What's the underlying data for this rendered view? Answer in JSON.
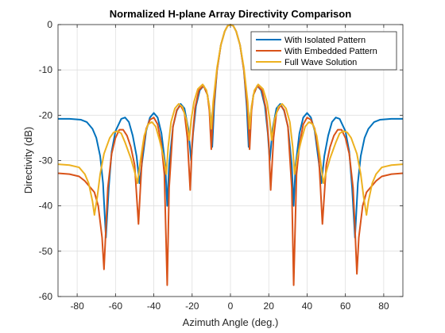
{
  "chart_data": {
    "type": "line",
    "title": "Normalized H-plane Array Directivity Comparison",
    "xlabel": "Azimuth Angle (deg.)",
    "ylabel": "Directivity (dB)",
    "xlim": [
      -90,
      90
    ],
    "ylim": [
      -60,
      0
    ],
    "xticks": [
      -80,
      -60,
      -40,
      -20,
      0,
      20,
      40,
      60,
      80
    ],
    "yticks": [
      0,
      -10,
      -20,
      -30,
      -40,
      -50,
      -60
    ],
    "grid": true,
    "legend_position": "top-right",
    "series": [
      {
        "name": "With Isolated Pattern",
        "color": "#0072BD",
        "points": [
          [
            -90,
            -20.8
          ],
          [
            -84,
            -20.8
          ],
          [
            -78,
            -21.0
          ],
          [
            -75,
            -21.5
          ],
          [
            -72,
            -23.0
          ],
          [
            -70,
            -25.0
          ],
          [
            -68,
            -29.0
          ],
          [
            -66.5,
            -35.0
          ],
          [
            -65,
            -47.0
          ],
          [
            -63.5,
            -36.0
          ],
          [
            -62,
            -28.0
          ],
          [
            -60,
            -23.5
          ],
          [
            -57,
            -20.8
          ],
          [
            -55,
            -20.5
          ],
          [
            -53,
            -21.5
          ],
          [
            -51,
            -24.5
          ],
          [
            -49,
            -29.0
          ],
          [
            -47.5,
            -35.0
          ],
          [
            -46,
            -30.0
          ],
          [
            -44,
            -23.5
          ],
          [
            -42,
            -20.5
          ],
          [
            -40,
            -19.5
          ],
          [
            -38,
            -20.5
          ],
          [
            -36,
            -24.0
          ],
          [
            -34,
            -31.0
          ],
          [
            -33,
            -40.0
          ],
          [
            -32,
            -31.0
          ],
          [
            -30,
            -22.5
          ],
          [
            -28,
            -19.0
          ],
          [
            -26,
            -17.5
          ],
          [
            -24,
            -18.5
          ],
          [
            -22,
            -23.0
          ],
          [
            -20.5,
            -30.0
          ],
          [
            -19.5,
            -24.0
          ],
          [
            -18,
            -18.0
          ],
          [
            -16,
            -14.5
          ],
          [
            -14,
            -13.5
          ],
          [
            -12,
            -15.5
          ],
          [
            -10.5,
            -20.0
          ],
          [
            -9.5,
            -27.0
          ],
          [
            -8.5,
            -18.0
          ],
          [
            -7,
            -10.0
          ],
          [
            -5,
            -4.5
          ],
          [
            -3,
            -1.5
          ],
          [
            -1.5,
            -0.3
          ],
          [
            0,
            0
          ],
          [
            1.5,
            -0.3
          ],
          [
            3,
            -1.5
          ],
          [
            5,
            -4.5
          ],
          [
            7,
            -10.0
          ],
          [
            8.5,
            -18.0
          ],
          [
            9.5,
            -27.0
          ],
          [
            10.5,
            -20.0
          ],
          [
            12,
            -15.5
          ],
          [
            14,
            -13.5
          ],
          [
            16,
            -14.5
          ],
          [
            18,
            -18.0
          ],
          [
            19.5,
            -24.0
          ],
          [
            20.5,
            -30.0
          ],
          [
            22,
            -23.0
          ],
          [
            24,
            -18.5
          ],
          [
            26,
            -17.5
          ],
          [
            28,
            -19.0
          ],
          [
            30,
            -22.5
          ],
          [
            32,
            -31.0
          ],
          [
            33,
            -40.0
          ],
          [
            34,
            -31.0
          ],
          [
            36,
            -24.0
          ],
          [
            38,
            -20.5
          ],
          [
            40,
            -19.5
          ],
          [
            42,
            -20.5
          ],
          [
            44,
            -23.5
          ],
          [
            46,
            -30.0
          ],
          [
            47.5,
            -35.0
          ],
          [
            49,
            -29.0
          ],
          [
            51,
            -24.5
          ],
          [
            53,
            -21.5
          ],
          [
            55,
            -20.5
          ],
          [
            57,
            -20.8
          ],
          [
            60,
            -23.5
          ],
          [
            62,
            -28.0
          ],
          [
            63.5,
            -36.0
          ],
          [
            65,
            -47.0
          ],
          [
            66.5,
            -35.0
          ],
          [
            68,
            -29.0
          ],
          [
            70,
            -25.0
          ],
          [
            72,
            -23.0
          ],
          [
            75,
            -21.5
          ],
          [
            78,
            -21.0
          ],
          [
            84,
            -20.8
          ],
          [
            90,
            -20.8
          ]
        ]
      },
      {
        "name": "With Embedded Pattern",
        "color": "#D95319",
        "points": [
          [
            -90,
            -32.8
          ],
          [
            -84,
            -33.0
          ],
          [
            -79,
            -33.5
          ],
          [
            -76,
            -34.5
          ],
          [
            -73,
            -36.0
          ],
          [
            -71,
            -37.0
          ],
          [
            -69,
            -40.0
          ],
          [
            -67,
            -47.0
          ],
          [
            -66,
            -54.0
          ],
          [
            -65,
            -45.0
          ],
          [
            -64,
            -36.0
          ],
          [
            -62,
            -28.5
          ],
          [
            -60,
            -25.0
          ],
          [
            -58,
            -23.2
          ],
          [
            -56,
            -23.2
          ],
          [
            -54,
            -24.5
          ],
          [
            -52,
            -27.0
          ],
          [
            -50,
            -31.0
          ],
          [
            -48,
            -44.0
          ],
          [
            -47,
            -36.0
          ],
          [
            -46,
            -28.5
          ],
          [
            -44,
            -23.0
          ],
          [
            -42,
            -21.0
          ],
          [
            -40,
            -20.5
          ],
          [
            -38,
            -22.0
          ],
          [
            -36,
            -26.5
          ],
          [
            -34.5,
            -33.0
          ],
          [
            -33,
            -57.5
          ],
          [
            -32,
            -36.0
          ],
          [
            -30,
            -22.5
          ],
          [
            -28,
            -18.8
          ],
          [
            -26,
            -17.8
          ],
          [
            -24,
            -19.5
          ],
          [
            -22.5,
            -25.0
          ],
          [
            -21,
            -36.5
          ],
          [
            -20,
            -26.0
          ],
          [
            -18.5,
            -18.5
          ],
          [
            -16.5,
            -14.5
          ],
          [
            -14,
            -13.5
          ],
          [
            -12,
            -15.5
          ],
          [
            -11,
            -19.0
          ],
          [
            -10,
            -27.5
          ],
          [
            -9,
            -19.0
          ],
          [
            -7,
            -10.0
          ],
          [
            -5,
            -4.5
          ],
          [
            -3,
            -1.5
          ],
          [
            -1.5,
            -0.3
          ],
          [
            0,
            0
          ],
          [
            1.5,
            -0.3
          ],
          [
            3,
            -1.5
          ],
          [
            5,
            -4.5
          ],
          [
            7,
            -10.0
          ],
          [
            9,
            -19.0
          ],
          [
            10,
            -27.5
          ],
          [
            11,
            -19.0
          ],
          [
            12,
            -15.5
          ],
          [
            14,
            -13.5
          ],
          [
            16.5,
            -14.5
          ],
          [
            18.5,
            -18.5
          ],
          [
            20,
            -26.0
          ],
          [
            21,
            -36.5
          ],
          [
            22.5,
            -25.0
          ],
          [
            24,
            -19.5
          ],
          [
            26,
            -17.8
          ],
          [
            28,
            -18.8
          ],
          [
            30,
            -22.5
          ],
          [
            32,
            -36.0
          ],
          [
            33,
            -57.5
          ],
          [
            34.5,
            -33.0
          ],
          [
            36,
            -26.5
          ],
          [
            38,
            -22.0
          ],
          [
            40,
            -20.5
          ],
          [
            42,
            -21.0
          ],
          [
            44,
            -23.0
          ],
          [
            46,
            -28.5
          ],
          [
            47,
            -36.0
          ],
          [
            48,
            -44.0
          ],
          [
            50,
            -31.0
          ],
          [
            52,
            -27.0
          ],
          [
            54,
            -24.5
          ],
          [
            56,
            -23.2
          ],
          [
            58,
            -23.2
          ],
          [
            60,
            -25.0
          ],
          [
            62,
            -28.5
          ],
          [
            64,
            -36.0
          ],
          [
            65,
            -45.0
          ],
          [
            66,
            -55.0
          ],
          [
            67,
            -47.0
          ],
          [
            69,
            -40.0
          ],
          [
            71,
            -37.0
          ],
          [
            73,
            -36.0
          ],
          [
            76,
            -34.5
          ],
          [
            79,
            -33.5
          ],
          [
            84,
            -33.0
          ],
          [
            90,
            -32.8
          ]
        ]
      },
      {
        "name": "Full Wave Solution",
        "color": "#EDB120",
        "points": [
          [
            -90,
            -30.8
          ],
          [
            -84,
            -31.0
          ],
          [
            -79,
            -31.5
          ],
          [
            -76,
            -33.0
          ],
          [
            -74,
            -35.0
          ],
          [
            -72,
            -39.0
          ],
          [
            -71,
            -42.0
          ],
          [
            -69.5,
            -38.0
          ],
          [
            -68,
            -33.0
          ],
          [
            -66,
            -28.5
          ],
          [
            -63,
            -25.0
          ],
          [
            -61,
            -23.8
          ],
          [
            -59,
            -23.5
          ],
          [
            -57,
            -24.0
          ],
          [
            -55,
            -26.0
          ],
          [
            -52,
            -29.5
          ],
          [
            -50,
            -32.5
          ],
          [
            -48.5,
            -35.0
          ],
          [
            -47,
            -30.0
          ],
          [
            -45,
            -24.5
          ],
          [
            -43,
            -22.0
          ],
          [
            -41,
            -21.5
          ],
          [
            -39,
            -22.5
          ],
          [
            -37,
            -25.5
          ],
          [
            -35,
            -29.0
          ],
          [
            -33.5,
            -33.0
          ],
          [
            -32.5,
            -27.0
          ],
          [
            -31,
            -21.5
          ],
          [
            -29,
            -18.5
          ],
          [
            -27,
            -17.5
          ],
          [
            -25,
            -18.2
          ],
          [
            -23,
            -21.0
          ],
          [
            -21.5,
            -25.5
          ],
          [
            -20.5,
            -21.0
          ],
          [
            -19,
            -17.0
          ],
          [
            -17,
            -14.2
          ],
          [
            -14.5,
            -13.2
          ],
          [
            -12.5,
            -14.5
          ],
          [
            -11,
            -18.0
          ],
          [
            -10,
            -23.0
          ],
          [
            -9,
            -17.0
          ],
          [
            -7,
            -9.5
          ],
          [
            -5,
            -4.5
          ],
          [
            -3,
            -1.5
          ],
          [
            -1.5,
            -0.3
          ],
          [
            0,
            0
          ],
          [
            1.5,
            -0.3
          ],
          [
            3,
            -1.5
          ],
          [
            5,
            -4.5
          ],
          [
            7,
            -9.5
          ],
          [
            9,
            -17.0
          ],
          [
            10,
            -23.0
          ],
          [
            11,
            -18.0
          ],
          [
            12.5,
            -14.5
          ],
          [
            14.5,
            -13.2
          ],
          [
            17,
            -14.2
          ],
          [
            19,
            -17.0
          ],
          [
            20.5,
            -21.0
          ],
          [
            21.5,
            -25.5
          ],
          [
            23,
            -21.0
          ],
          [
            25,
            -18.2
          ],
          [
            27,
            -17.5
          ],
          [
            29,
            -18.5
          ],
          [
            31,
            -21.5
          ],
          [
            32.5,
            -27.0
          ],
          [
            33.5,
            -33.0
          ],
          [
            35,
            -29.0
          ],
          [
            37,
            -25.5
          ],
          [
            39,
            -22.5
          ],
          [
            41,
            -21.5
          ],
          [
            43,
            -22.0
          ],
          [
            45,
            -24.5
          ],
          [
            47,
            -30.0
          ],
          [
            48.5,
            -35.0
          ],
          [
            50,
            -32.5
          ],
          [
            52,
            -29.5
          ],
          [
            55,
            -26.0
          ],
          [
            57,
            -24.0
          ],
          [
            59,
            -23.5
          ],
          [
            61,
            -23.8
          ],
          [
            63,
            -25.0
          ],
          [
            66,
            -28.5
          ],
          [
            68,
            -33.0
          ],
          [
            69.5,
            -38.0
          ],
          [
            71,
            -42.0
          ],
          [
            72,
            -39.0
          ],
          [
            74,
            -35.0
          ],
          [
            76,
            -33.0
          ],
          [
            79,
            -31.5
          ],
          [
            84,
            -31.0
          ],
          [
            90,
            -30.8
          ]
        ]
      }
    ]
  }
}
